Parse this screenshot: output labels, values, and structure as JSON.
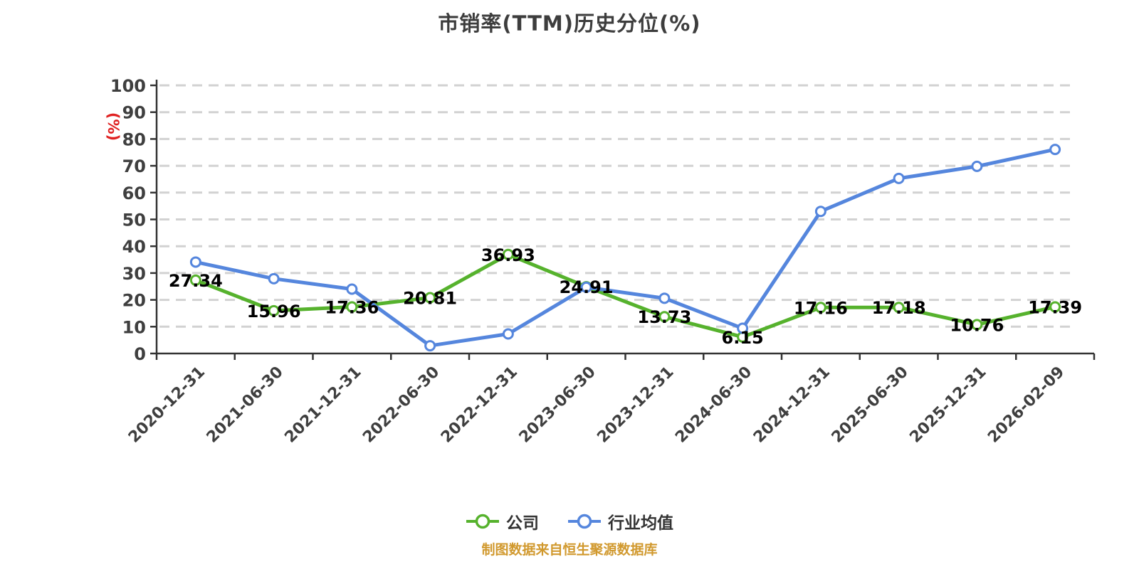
{
  "title": "市销率(TTM)历史分位(%)",
  "source_note": "制图数据来自恒生聚源数据库",
  "colors": {
    "company": "#56B22D",
    "industry": "#5586DD",
    "axis": "#333333",
    "grid": "#D2D2D2",
    "tick_label": "#3F3F3F",
    "data_label": "#000000",
    "unit_label": "#E02121",
    "title": "#3D3D3D",
    "source": "#D1992E",
    "background": "#FFFFFF",
    "marker_fill": "#FFFFFF"
  },
  "chart_data": {
    "type": "line",
    "title": "市销率(TTM)历史分位(%)",
    "ylabel": "(%)",
    "xlabel": "",
    "ylim": [
      0,
      100
    ],
    "ytick_step": 10,
    "grid": "horizontal-dashed",
    "legend_position": "bottom",
    "categories": [
      "2020-12-31",
      "2021-06-30",
      "2021-12-31",
      "2022-06-30",
      "2022-12-31",
      "2023-06-30",
      "2023-12-31",
      "2024-06-30",
      "2024-12-31",
      "2025-06-30",
      "2025-12-31",
      "2026-02-09"
    ],
    "series": [
      {
        "name": "公司",
        "color": "#56B22D",
        "show_labels": true,
        "values": [
          27.34,
          15.96,
          17.36,
          20.81,
          36.93,
          24.91,
          13.73,
          6.15,
          17.16,
          17.18,
          10.76,
          17.39
        ]
      },
      {
        "name": "行业均值",
        "color": "#5586DD",
        "show_labels": false,
        "values": [
          34.1,
          27.9,
          24.0,
          2.9,
          7.3,
          24.7,
          20.6,
          9.4,
          53.0,
          65.3,
          69.8,
          76.1
        ]
      }
    ]
  }
}
